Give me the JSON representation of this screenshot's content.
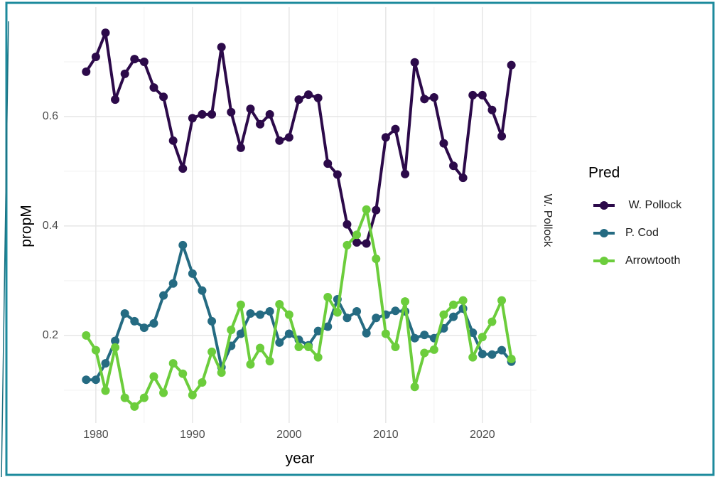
{
  "chart_data": {
    "type": "line",
    "x_label": "year",
    "y_label": "propM",
    "strip_label": "W. Pollock",
    "legend_title": "Pred",
    "legend": "right",
    "grid": true,
    "x": [
      1979,
      1980,
      1981,
      1982,
      1983,
      1984,
      1985,
      1986,
      1987,
      1988,
      1989,
      1990,
      1991,
      1992,
      1993,
      1994,
      1995,
      1996,
      1997,
      1998,
      1999,
      2000,
      2001,
      2002,
      2003,
      2004,
      2005,
      2006,
      2007,
      2008,
      2009,
      2010,
      2011,
      2012,
      2013,
      2014,
      2015,
      2016,
      2017,
      2018,
      2019,
      2020,
      2021,
      2022,
      2023
    ],
    "xlim": [
      1976.7,
      2025.6
    ],
    "xticks": [
      1980,
      1990,
      2000,
      2010,
      2020
    ],
    "ylim": [
      0.04,
      0.8
    ],
    "yticks": [
      0.2,
      0.4,
      0.6
    ],
    "series": [
      {
        "name": " W. Pollock",
        "color": "#2c0a4a",
        "values": [
          0.682,
          0.709,
          0.753,
          0.631,
          0.678,
          0.705,
          0.7,
          0.653,
          0.636,
          0.556,
          0.505,
          0.597,
          0.604,
          0.604,
          0.727,
          0.608,
          0.543,
          0.614,
          0.586,
          0.604,
          0.556,
          0.562,
          0.631,
          0.64,
          0.634,
          0.514,
          0.494,
          0.403,
          0.37,
          0.368,
          0.429,
          0.562,
          0.577,
          0.495,
          0.699,
          0.632,
          0.635,
          0.551,
          0.51,
          0.488,
          0.639,
          0.639,
          0.612,
          0.564,
          0.694
        ]
      },
      {
        "name": "P. Cod",
        "color": "#256b82",
        "values": [
          0.119,
          0.119,
          0.149,
          0.19,
          0.24,
          0.226,
          0.214,
          0.222,
          0.273,
          0.295,
          0.365,
          0.313,
          0.282,
          0.226,
          0.142,
          0.181,
          0.203,
          0.24,
          0.238,
          0.244,
          0.187,
          0.203,
          0.192,
          0.182,
          0.208,
          0.216,
          0.266,
          0.232,
          0.244,
          0.204,
          0.232,
          0.238,
          0.245,
          0.244,
          0.195,
          0.201,
          0.195,
          0.213,
          0.234,
          0.249,
          0.205,
          0.166,
          0.165,
          0.173,
          0.152
        ]
      },
      {
        "name": "Arrowtooth",
        "color": "#6ccd3c",
        "values": [
          0.2,
          0.173,
          0.099,
          0.178,
          0.086,
          0.07,
          0.086,
          0.125,
          0.095,
          0.149,
          0.13,
          0.091,
          0.114,
          0.17,
          0.132,
          0.21,
          0.256,
          0.147,
          0.177,
          0.153,
          0.257,
          0.238,
          0.179,
          0.179,
          0.16,
          0.27,
          0.242,
          0.365,
          0.384,
          0.43,
          0.34,
          0.203,
          0.179,
          0.262,
          0.106,
          0.168,
          0.174,
          0.238,
          0.256,
          0.264,
          0.16,
          0.197,
          0.225,
          0.264,
          0.157
        ]
      }
    ]
  }
}
